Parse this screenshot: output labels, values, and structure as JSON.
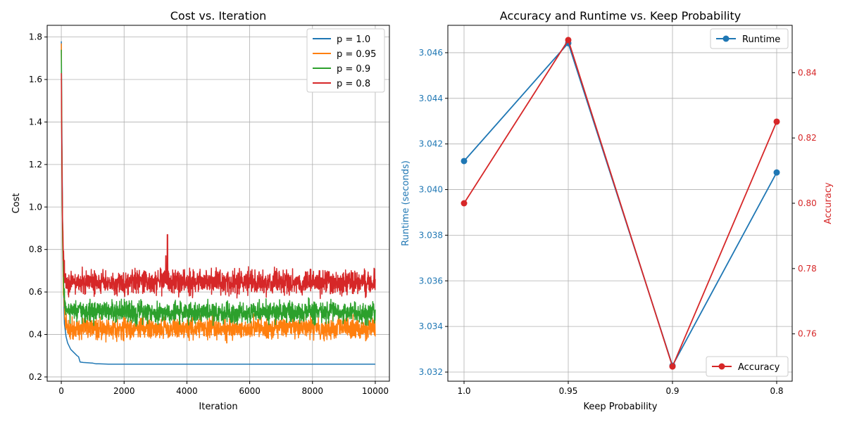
{
  "chart_data": [
    {
      "type": "line",
      "title": "Cost vs. Iteration",
      "xlabel": "Iteration",
      "ylabel": "Cost",
      "xlim": [
        -450,
        10450
      ],
      "ylim": [
        0.18,
        1.855
      ],
      "xticks": [
        0,
        2000,
        4000,
        6000,
        8000,
        10000
      ],
      "xtick_labels": [
        "0",
        "2000",
        "4000",
        "6000",
        "8000",
        "10000"
      ],
      "yticks": [
        0.2,
        0.4,
        0.6,
        0.8,
        1.0,
        1.2,
        1.4,
        1.6,
        1.8
      ],
      "ytick_labels": [
        "0.2",
        "0.4",
        "0.6",
        "0.8",
        "1.0",
        "1.2",
        "1.4",
        "1.6",
        "1.8"
      ],
      "grid": true,
      "legend_position": "top-right",
      "series": [
        {
          "name": "p = 1.0",
          "color": "#1f77b4",
          "start": 1.78,
          "x": [
            0,
            20,
            40,
            60,
            80,
            100,
            150,
            200,
            300,
            400,
            500,
            550,
            600,
            700,
            1000,
            1100,
            1200,
            1500,
            2000,
            4000,
            6000,
            8000,
            10000
          ],
          "y": [
            1.78,
            1.3,
            0.95,
            0.7,
            0.55,
            0.45,
            0.39,
            0.36,
            0.33,
            0.315,
            0.3,
            0.295,
            0.27,
            0.268,
            0.265,
            0.262,
            0.262,
            0.26,
            0.26,
            0.26,
            0.26,
            0.26,
            0.26
          ]
        },
        {
          "name": "p = 0.95",
          "color": "#ff7f0e",
          "start": 1.77,
          "level": 0.43,
          "noise": 0.025
        },
        {
          "name": "p = 0.9",
          "color": "#2ca02c",
          "start": 1.74,
          "level": 0.505,
          "noise": 0.025
        },
        {
          "name": "p = 0.8",
          "color": "#d62728",
          "start": 1.63,
          "level": 0.645,
          "noise": 0.028
        }
      ]
    },
    {
      "type": "line",
      "title": "Accuracy and Runtime vs. Keep Probability",
      "xlabel": "Keep Probability",
      "categories": [
        "1.0",
        "0.95",
        "0.9",
        "0.8"
      ],
      "grid": true,
      "left_axis": {
        "label": "Runtime (seconds)",
        "color": "#1f77b4",
        "ylim": [
          3.0316,
          3.0472
        ],
        "ticks": [
          3.032,
          3.034,
          3.036,
          3.038,
          3.04,
          3.042,
          3.044,
          3.046
        ],
        "tick_labels": [
          "3.032",
          "3.034",
          "3.036",
          "3.038",
          "3.040",
          "3.042",
          "3.044",
          "3.046"
        ]
      },
      "right_axis": {
        "label": "Accuracy",
        "color": "#d62728",
        "ylim": [
          0.7455,
          0.8545
        ],
        "ticks": [
          0.76,
          0.78,
          0.8,
          0.82,
          0.84
        ],
        "tick_labels": [
          "0.76",
          "0.78",
          "0.80",
          "0.82",
          "0.84"
        ]
      },
      "series": [
        {
          "name": "Runtime",
          "axis": "left",
          "color": "#1f77b4",
          "values": [
            3.04125,
            3.04642,
            3.03228,
            3.04075
          ],
          "legend_position": "top-right"
        },
        {
          "name": "Accuracy",
          "axis": "right",
          "color": "#d62728",
          "values": [
            0.8,
            0.85,
            0.75,
            0.825
          ],
          "legend_position": "bottom-right"
        }
      ]
    }
  ]
}
